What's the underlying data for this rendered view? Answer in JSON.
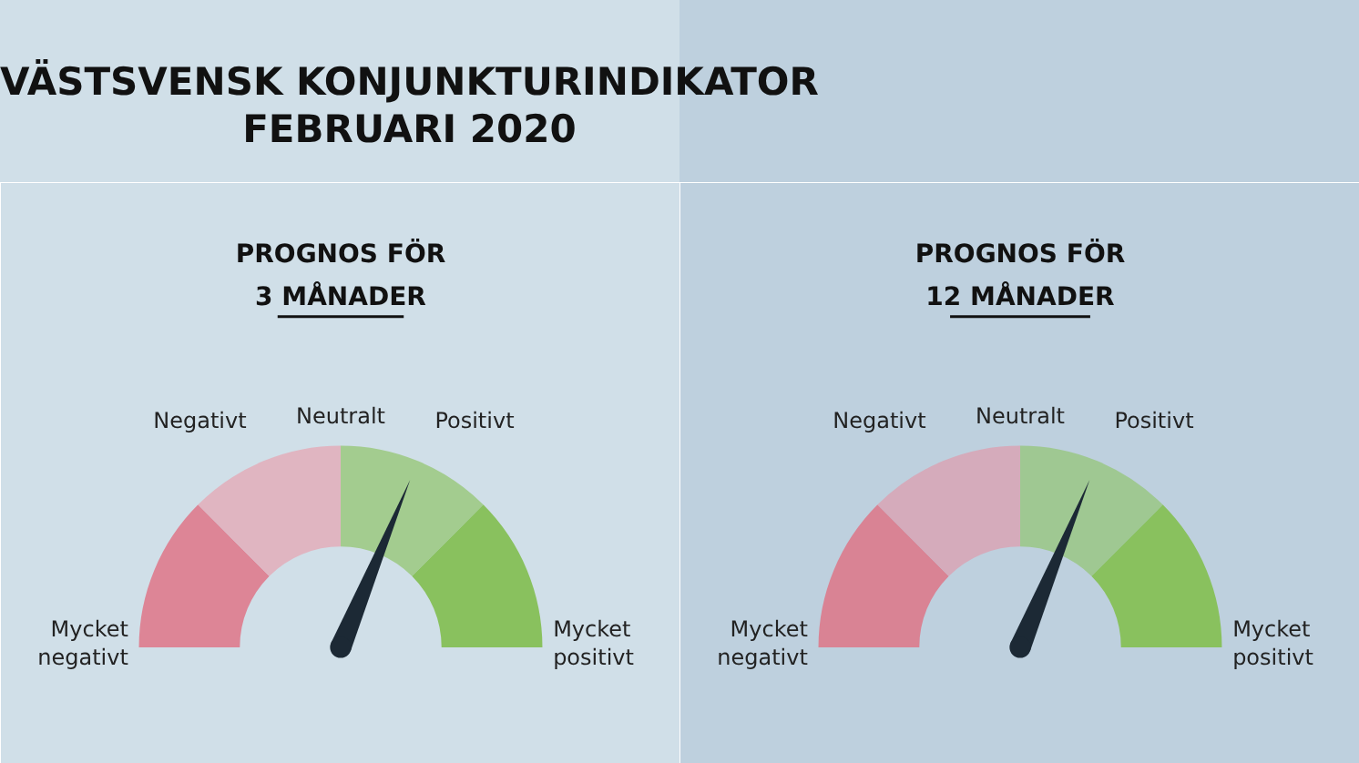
{
  "chart_data": [
    {
      "type": "donut",
      "title": "VÄSTSVENSK KONJUNKTURINDIKATOR\nFEBRUARI 2020",
      "subtitle": "PROGNOS FÖR\n3 MÅNADER",
      "categories": [
        "Mycket\nnegativt",
        "Negativt",
        "Positivt",
        "Mycket\npositivt"
      ],
      "values": [
        25,
        25,
        25,
        25
      ],
      "colors": [
        "#dd8596",
        "#e0b5c1",
        "#a3cc8f",
        "#89c15e"
      ],
      "needle": "Positivt",
      "annotations": [
        "Neutralt"
      ]
    },
    {
      "type": "donut",
      "subtitle": "PROGNOS FÖR\n12 MÅNADER",
      "categories": [
        "Mycket\nnegativt",
        "Negativt",
        "Positivt",
        "Mycket\npositivt"
      ],
      "values": [
        25,
        25,
        25,
        25
      ],
      "colors": [
        "#d98394",
        "#d5abbb",
        "#9fc892",
        "#89c15e"
      ],
      "needle": "Positivt",
      "annotations": [
        "Neutralt"
      ]
    }
  ]
}
